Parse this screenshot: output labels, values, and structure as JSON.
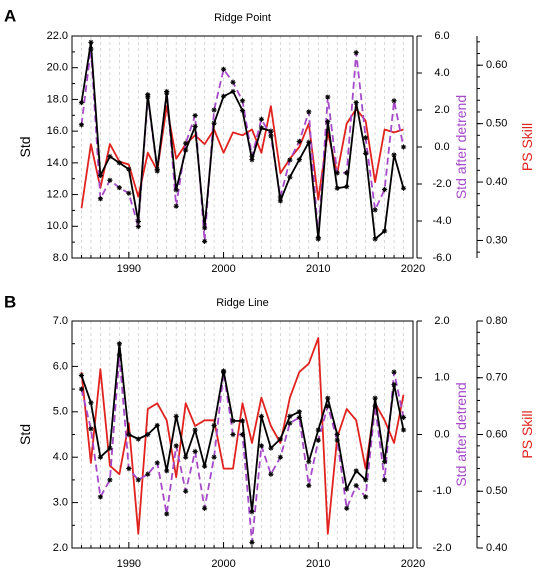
{
  "chart_data": [
    {
      "type": "line",
      "panel_label": "A",
      "title": "Ridge Point",
      "ylabel": "Std",
      "y2label": "Std after detrend",
      "y3label": "PS Skill",
      "xlim": [
        1984,
        2020
      ],
      "xticks": [
        "1990",
        "2000",
        "2010",
        "2020"
      ],
      "ylim": [
        8.0,
        22.0
      ],
      "yticks": [
        "8.0",
        "10.0",
        "12.0",
        "14.0",
        "16.0",
        "18.0",
        "20.0",
        "22.0"
      ],
      "y2lim": [
        -6.0,
        6.0
      ],
      "y2ticks": [
        "-6.0",
        "-4.0",
        "-2.0",
        "0.0",
        "2.0",
        "4.0",
        "6.0"
      ],
      "y3lim": [
        0.27,
        0.65
      ],
      "y3ticks": [
        "0.30",
        "0.40",
        "0.50",
        "0.60"
      ],
      "grid": "vertical dashed",
      "x": [
        1985,
        1986,
        1987,
        1988,
        1989,
        1990,
        1991,
        1992,
        1993,
        1994,
        1995,
        1996,
        1997,
        1998,
        1999,
        2000,
        2001,
        2002,
        2003,
        2004,
        2005,
        2006,
        2007,
        2008,
        2009,
        2010,
        2011,
        2012,
        2013,
        2014,
        2015,
        2016,
        2017,
        2018,
        2019
      ],
      "series": [
        {
          "axis": "y",
          "color": "#000000",
          "dash": "solid",
          "marker": "*",
          "values": [
            17.8,
            21.6,
            13.2,
            14.4,
            14.0,
            13.6,
            10.3,
            18.3,
            13.6,
            18.4,
            12.3,
            14.8,
            16.3,
            9.9,
            16.5,
            18.2,
            18.5,
            17.3,
            14.2,
            16.2,
            16.0,
            11.6,
            13.1,
            14.2,
            15.3,
            9.2,
            16.6,
            12.4,
            12.5,
            17.8,
            14.6,
            9.2,
            9.7,
            14.5,
            12.4
          ]
        },
        {
          "axis": "y2",
          "color": "#a64ac9",
          "dash": "dashed",
          "marker": "*",
          "values": [
            1.2,
            5.3,
            -2.8,
            -1.8,
            -2.2,
            -2.5,
            -4.3,
            2.7,
            -1.3,
            3.0,
            -3.2,
            0.2,
            1.7,
            -5.1,
            2.0,
            4.2,
            3.5,
            2.5,
            -0.5,
            1.5,
            0.6,
            -2.7,
            -0.7,
            0.3,
            1.9,
            -4.9,
            2.7,
            -1.4,
            -1.4,
            5.1,
            0.5,
            -3.4,
            -2.3,
            2.5,
            0.0
          ]
        },
        {
          "axis": "y3",
          "color": "#e0231f",
          "dash": "solid",
          "marker": "none",
          "values": [
            0.355,
            0.465,
            0.39,
            0.465,
            0.435,
            0.43,
            0.375,
            0.45,
            0.42,
            0.53,
            0.44,
            0.465,
            0.48,
            0.465,
            0.49,
            0.45,
            0.485,
            0.48,
            0.49,
            0.45,
            0.53,
            0.415,
            0.44,
            0.46,
            0.5,
            0.37,
            0.485,
            0.415,
            0.5,
            0.525,
            0.505,
            0.4,
            0.49,
            0.485,
            0.49
          ]
        }
      ]
    },
    {
      "type": "line",
      "panel_label": "B",
      "title": "Ridge Line",
      "ylabel": "Std",
      "y2label": "Std after detrend",
      "y3label": "PS Skill",
      "xlim": [
        1984,
        2020
      ],
      "xticks": [
        "1990",
        "2000",
        "2010",
        "2020"
      ],
      "ylim": [
        2.0,
        7.0
      ],
      "yticks": [
        "2.0",
        "3.0",
        "4.0",
        "5.0",
        "6.0",
        "7.0"
      ],
      "y2lim": [
        -2.0,
        2.0
      ],
      "y2ticks": [
        "-2.0",
        "-1.0",
        "0.0",
        "1.0",
        "2.0"
      ],
      "y3lim": [
        0.4,
        0.8
      ],
      "y3ticks": [
        "0.40",
        "0.50",
        "0.60",
        "0.70",
        "0.80"
      ],
      "grid": "vertical dashed",
      "x": [
        1985,
        1986,
        1987,
        1988,
        1989,
        1990,
        1991,
        1992,
        1993,
        1994,
        1995,
        1996,
        1997,
        1998,
        1999,
        2000,
        2001,
        2002,
        2003,
        2004,
        2005,
        2006,
        2007,
        2008,
        2009,
        2010,
        2011,
        2012,
        2013,
        2014,
        2015,
        2016,
        2017,
        2018,
        2019
      ],
      "series": [
        {
          "axis": "y",
          "color": "#000000",
          "dash": "solid",
          "marker": "*",
          "values": [
            5.8,
            5.2,
            4.0,
            4.2,
            6.5,
            4.5,
            4.4,
            4.5,
            4.7,
            3.7,
            4.9,
            4.0,
            4.6,
            3.8,
            4.7,
            5.9,
            4.8,
            4.8,
            2.8,
            4.9,
            4.2,
            4.4,
            4.9,
            5.0,
            3.9,
            4.6,
            5.3,
            4.5,
            3.3,
            3.7,
            3.5,
            5.3,
            3.9,
            5.6,
            4.6
          ]
        },
        {
          "axis": "y2",
          "color": "#a64ac9",
          "dash": "dashed",
          "marker": "*",
          "values": [
            0.8,
            0.1,
            -1.1,
            -0.8,
            1.4,
            -0.6,
            -0.8,
            -0.7,
            -0.5,
            -1.4,
            -0.2,
            -1.0,
            -0.3,
            -1.3,
            -0.4,
            1.1,
            0.0,
            0.0,
            -1.9,
            -0.2,
            -0.7,
            -0.4,
            0.2,
            0.3,
            -0.9,
            -0.1,
            0.5,
            -0.1,
            -1.3,
            -0.9,
            -1.1,
            0.5,
            -0.8,
            1.1,
            0.3
          ]
        },
        {
          "axis": "y3",
          "color": "#e0231f",
          "dash": "solid",
          "marker": "none",
          "values": [
            0.71,
            0.55,
            0.715,
            0.545,
            0.53,
            0.62,
            0.425,
            0.645,
            0.655,
            0.625,
            0.525,
            0.655,
            0.615,
            0.625,
            0.625,
            0.54,
            0.54,
            0.655,
            0.585,
            0.665,
            0.615,
            0.585,
            0.665,
            0.71,
            0.725,
            0.77,
            0.425,
            0.595,
            0.645,
            0.625,
            0.54,
            0.655,
            0.625,
            0.585,
            0.67
          ]
        }
      ]
    }
  ]
}
